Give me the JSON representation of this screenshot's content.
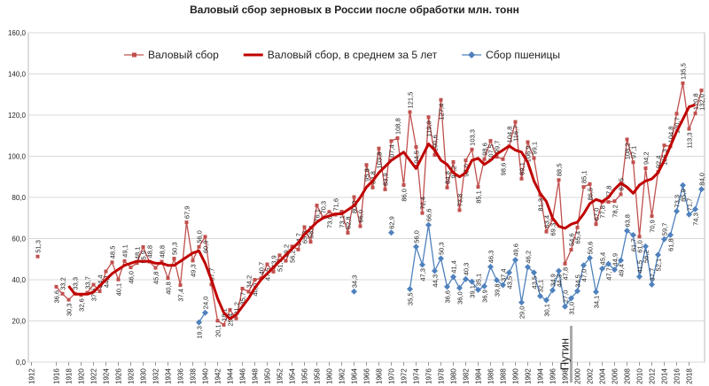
{
  "chart_data": {
    "type": "line",
    "title": "Валовый сбор зерновых в России после обработки млн. тонн",
    "legend": "top",
    "annotations": [
      "Путин"
    ],
    "xlim": [
      1911.5,
      2020.5
    ],
    "ylim": [
      0,
      160
    ],
    "yticks": [
      {
        "value": 0,
        "label": "0,0"
      },
      {
        "value": 20,
        "label": "20,0"
      },
      {
        "value": 40,
        "label": "40,0"
      },
      {
        "value": 60,
        "label": "60,0"
      },
      {
        "value": 80,
        "label": "80,0"
      },
      {
        "value": 100,
        "label": "100,0"
      },
      {
        "value": 120,
        "label": "120,0"
      },
      {
        "value": 140,
        "label": "140,0"
      },
      {
        "value": 160,
        "label": "160,0"
      }
    ],
    "xticks": [
      1912,
      1916,
      1918,
      1920,
      1922,
      1924,
      1926,
      1928,
      1930,
      1932,
      1934,
      1936,
      1938,
      1940,
      1942,
      1944,
      1946,
      1948,
      1950,
      1952,
      1954,
      1956,
      1958,
      1960,
      1962,
      1964,
      1966,
      1968,
      1970,
      1972,
      1974,
      1976,
      1978,
      1980,
      1982,
      1984,
      1986,
      1988,
      1990,
      1992,
      1994,
      1996,
      1998,
      2000,
      2002,
      2004,
      2006,
      2008,
      2010,
      2012,
      2014,
      2016,
      2018
    ],
    "x": [
      1913,
      1914,
      1915,
      1916,
      1917,
      1918,
      1919,
      1920,
      1921,
      1922,
      1923,
      1924,
      1925,
      1926,
      1927,
      1928,
      1929,
      1930,
      1931,
      1932,
      1933,
      1934,
      1935,
      1936,
      1937,
      1938,
      1939,
      1940,
      1941,
      1942,
      1943,
      1944,
      1945,
      1946,
      1947,
      1948,
      1949,
      1950,
      1951,
      1952,
      1953,
      1954,
      1955,
      1956,
      1957,
      1958,
      1959,
      1960,
      1961,
      1962,
      1963,
      1964,
      1965,
      1966,
      1967,
      1968,
      1969,
      1970,
      1971,
      1972,
      1973,
      1974,
      1975,
      1976,
      1977,
      1978,
      1979,
      1980,
      1981,
      1982,
      1983,
      1984,
      1985,
      1986,
      1987,
      1988,
      1989,
      1990,
      1991,
      1992,
      1993,
      1994,
      1995,
      1996,
      1997,
      1998,
      1999,
      2000,
      2001,
      2002,
      2003,
      2004,
      2005,
      2006,
      2007,
      2008,
      2009,
      2010,
      2011,
      2012,
      2013,
      2014,
      2015,
      2016,
      2017,
      2018,
      2019,
      2020
    ],
    "series": [
      {
        "name": "Валовый сбор",
        "color": "#c0504d",
        "marker": "square",
        "values": [
          51.3,
          null,
          null,
          36.6,
          33.2,
          30.3,
          33.3,
          32.6,
          33.7,
          37.6,
          34.4,
          44.1,
          48.5,
          40.1,
          49.1,
          46.0,
          48.1,
          55.9,
          48.8,
          45.8,
          48.8,
          40.8,
          50.3,
          37.4,
          67.9,
          49.3,
          56.0,
          60.9,
          37.7,
          20.1,
          18.1,
          25.4,
          21.2,
          35.7,
          34.2,
          40.0,
          40.7,
          47.5,
          43.9,
          51.9,
          49.2,
          56.2,
          54.7,
          65.6,
          58.4,
          76.1,
          70.3,
          73.0,
          71.6,
          73.1,
          62.8,
          80.2,
          66.0,
          95.8,
          84.8,
          103.8,
          83.9,
          107.4,
          108.8,
          86.0,
          121.5,
          104.5,
          72.4,
          119.0,
          100.6,
          127.4,
          84.8,
          97.2,
          73.8,
          98.0,
          103.3,
          85.1,
          98.6,
          107.5,
          99.7,
          98.6,
          104.8,
          116.7,
          89.1,
          106.9,
          99.1,
          81.3,
          63.4,
          69.3,
          88.5,
          47.8,
          54.6,
          65.4,
          85.1,
          86.5,
          67.0,
          77.8,
          77.8,
          78.2,
          81.5,
          108.2,
          97.1,
          61.0,
          94.2,
          70.9,
          92.4,
          105.3,
          104.8,
          120.7,
          135.5,
          113.3,
          120.8,
          132.0
        ],
        "value_labels": [
          "51,3",
          null,
          null,
          "36,6",
          "33,2",
          "30,3",
          "33,3",
          "32,6",
          "33,7",
          "37,6",
          "34,4",
          "44,1",
          "48,5",
          "40,1",
          "49,1",
          "46,0",
          "48,1",
          "55,9",
          "48,8",
          "45,8",
          "48,8",
          "40,8",
          "50,3",
          "37,4",
          "67,9",
          "49,3",
          "56,0",
          "60,9",
          "37,7",
          "20,1",
          "18,1",
          "25,4",
          "21,2",
          "35,7",
          "34,2",
          "40,0",
          "40,7",
          "47,5",
          "43,9",
          "51,9",
          "49,2",
          "56,2",
          "54,7",
          "65,6",
          "58,4",
          "76,1",
          "70,3",
          "73,0",
          "71,6",
          "73,1",
          "62,8",
          "80,2",
          "66,0",
          "95,8",
          "84,8",
          "103,8",
          "83,9",
          "107,4",
          "108,8",
          "86,0",
          "121,5",
          "104,5",
          "72,4",
          "119,0",
          "100,6",
          "127,4",
          "84,8",
          "97,2",
          "73,8",
          "98,0",
          "103,3",
          "85,1",
          "98,6",
          "107,5",
          "99,7",
          "98,6",
          "104,8",
          "116,7",
          "89,1",
          "106,9",
          "99,1",
          "81,3",
          "63,4",
          "69,3",
          "88,5",
          "47,8",
          "54,6",
          "65,4",
          "85,1",
          "86,5",
          "67,0",
          "77,8",
          "77,8",
          "78,2",
          "81,5",
          "108,2",
          "97,1",
          "61,0",
          "94,2",
          "70,9",
          "92,4",
          "105,3",
          "104,8",
          "120,7",
          "135,5",
          "113,3",
          "120,8",
          "132,0"
        ]
      },
      {
        "name": "Валовый сбор, в среднем за 5 лет",
        "color": "#c00000",
        "marker": "none",
        "values": [
          null,
          null,
          null,
          null,
          null,
          37,
          33,
          33,
          33,
          34,
          37,
          40,
          43,
          45,
          47,
          48,
          49,
          49,
          49,
          48,
          48,
          47,
          47,
          49,
          51,
          53,
          54,
          48,
          40,
          31,
          24,
          21,
          23,
          27,
          31,
          36,
          40,
          43,
          46,
          49,
          52,
          55,
          58,
          62,
          65,
          68,
          70,
          71,
          72,
          72,
          74,
          76,
          80,
          85,
          88,
          92,
          95,
          98,
          100,
          102,
          98,
          94,
          100,
          106,
          103,
          98,
          96,
          92,
          90,
          92,
          98,
          99,
          96,
          98,
          101,
          103,
          105,
          103,
          102,
          97,
          88,
          82,
          78,
          70,
          66,
          65,
          67,
          68,
          72,
          77,
          79,
          78,
          80,
          84,
          87,
          85,
          82,
          86,
          88,
          89,
          92,
          98,
          105,
          112,
          118,
          124,
          125,
          null
        ]
      },
      {
        "name": "Сбор пшеницы",
        "color": "#4f81bd",
        "marker": "diamond",
        "values": [
          null,
          null,
          null,
          null,
          null,
          null,
          null,
          null,
          null,
          null,
          null,
          null,
          null,
          null,
          null,
          null,
          null,
          null,
          null,
          null,
          null,
          null,
          null,
          null,
          null,
          null,
          19.3,
          24.0,
          null,
          null,
          null,
          null,
          null,
          null,
          null,
          null,
          null,
          null,
          null,
          null,
          null,
          null,
          null,
          null,
          null,
          null,
          null,
          null,
          null,
          null,
          null,
          34.3,
          null,
          null,
          null,
          null,
          null,
          62.9,
          null,
          null,
          35.5,
          56.0,
          47.3,
          66.6,
          44.3,
          50.3,
          36.6,
          41.4,
          36.0,
          40.3,
          39.1,
          35.1,
          36.9,
          46.3,
          39.8,
          37.4,
          43.5,
          49.6,
          29.0,
          46.2,
          43.5,
          32.1,
          30.1,
          34.9,
          44.3,
          27.0,
          31.0,
          34.5,
          47.0,
          50.6,
          34.1,
          45.4,
          47.7,
          44.9,
          49.4,
          63.8,
          61.7,
          41.5,
          56.2,
          37.7,
          52.1,
          59.7,
          61.8,
          73.3,
          85.9,
          71.7,
          74.3,
          84.0
        ],
        "value_labels": [
          null,
          null,
          null,
          null,
          null,
          null,
          null,
          null,
          null,
          null,
          null,
          null,
          null,
          null,
          null,
          null,
          null,
          null,
          null,
          null,
          null,
          null,
          null,
          null,
          null,
          null,
          "19,3",
          "24,0",
          null,
          null,
          null,
          null,
          null,
          null,
          null,
          null,
          null,
          null,
          null,
          null,
          null,
          null,
          null,
          null,
          null,
          null,
          null,
          null,
          null,
          null,
          null,
          "34,3",
          null,
          null,
          null,
          null,
          null,
          "62,9",
          null,
          null,
          "35,5",
          "56,0",
          "47,3",
          "66,6",
          "44,3",
          "50,3",
          "36,6",
          "41,4",
          "36,0",
          "40,3",
          "39,1",
          "35,1",
          "36,9",
          "46,3",
          "39,8",
          "37,4",
          "43,5",
          "49,6",
          "29,0",
          "46,2",
          "43,5",
          "32,1",
          "30,1",
          "34,9",
          "44,3",
          "27,0",
          "31,0",
          "34,5",
          "47,0",
          "50,6",
          "34,1",
          "45,4",
          "47,7",
          "44,9",
          "49,4",
          "63,8",
          "61,7",
          "41,5",
          "56,2",
          "37,7",
          "52,1",
          "59,7",
          "61,8",
          "73,3",
          "85,9",
          "71,7",
          "74,3",
          "84,0"
        ]
      }
    ]
  }
}
